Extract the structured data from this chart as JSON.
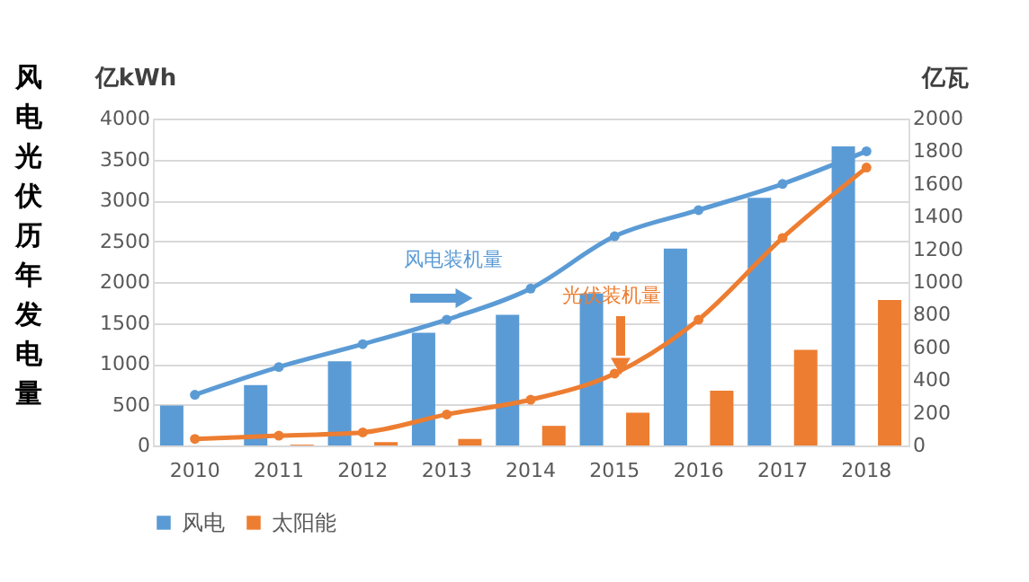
{
  "chart_data": {
    "type": "bar",
    "title": "风电光伏历年发电量",
    "ylabel": "亿kWh",
    "y2label": "亿瓦",
    "categories": [
      "2010",
      "2011",
      "2012",
      "2013",
      "2014",
      "2015",
      "2016",
      "2017",
      "2018"
    ],
    "series": [
      {
        "name": "风电",
        "type": "bar",
        "color": "#5b9bd5",
        "values": [
          490,
          740,
          1030,
          1380,
          1600,
          1860,
          2410,
          3030,
          3660
        ]
      },
      {
        "name": "太阳能",
        "type": "bar",
        "color": "#ed7d31",
        "values": [
          0,
          10,
          40,
          80,
          240,
          400,
          670,
          1170,
          1780
        ]
      },
      {
        "name": "风电装机量",
        "type": "line",
        "axis": "y2",
        "color": "#5b9bd5",
        "values": [
          310,
          480,
          620,
          770,
          960,
          1280,
          1440,
          1600,
          1800
        ]
      },
      {
        "name": "光伏装机量",
        "type": "line",
        "axis": "y2",
        "color": "#ed7d31",
        "values": [
          40,
          60,
          80,
          190,
          280,
          440,
          770,
          1270,
          1700
        ]
      }
    ],
    "ylim": [
      0,
      4000
    ],
    "yticks": [
      0,
      500,
      1000,
      1500,
      2000,
      2500,
      3000,
      3500,
      4000
    ],
    "y2lim": [
      0,
      2000
    ],
    "y2ticks": [
      0,
      200,
      400,
      600,
      800,
      1000,
      1200,
      1400,
      1600,
      1800,
      2000
    ],
    "grid": "y",
    "legend": "bottom",
    "marker": "circle",
    "line_style": "solid"
  }
}
